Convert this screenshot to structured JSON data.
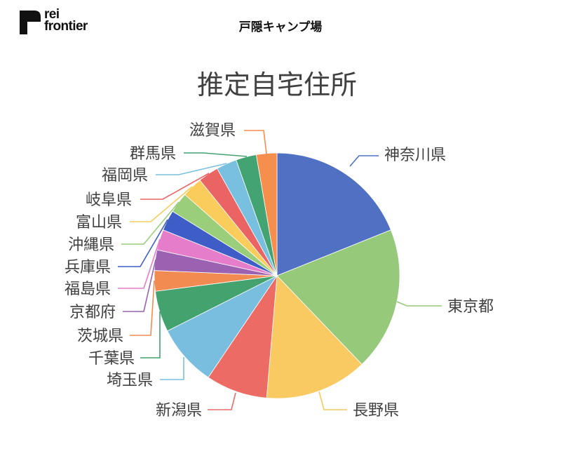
{
  "header": {
    "logo_line1": "rei",
    "logo_line2": "frontier",
    "page_title": "戸隠キャンプ場"
  },
  "chart_data": {
    "type": "pie",
    "title": "推定自宅住所",
    "categories": [
      "神奈川県",
      "東京都",
      "長野県",
      "新潟県",
      "埼玉県",
      "千葉県",
      "茨城県",
      "京都府",
      "福島県",
      "兵庫県",
      "沖縄県",
      "富山県",
      "岐阜県",
      "福岡県",
      "群馬県",
      "滋賀県"
    ],
    "values": [
      7,
      7,
      5,
      3,
      3,
      2,
      1,
      1,
      1,
      1,
      1,
      1,
      1,
      1,
      1,
      1
    ],
    "colors": [
      "#5070C4",
      "#97C97A",
      "#F9C962",
      "#EC6B65",
      "#7ABEDF",
      "#44A26F",
      "#F28B52",
      "#9A62B1",
      "#E67DCB",
      "#3E5DC6",
      "#9ACE7B",
      "#F9CC5B",
      "#EA6464",
      "#79C0E0",
      "#43A372",
      "#F68E4E"
    ],
    "legend": "none"
  }
}
